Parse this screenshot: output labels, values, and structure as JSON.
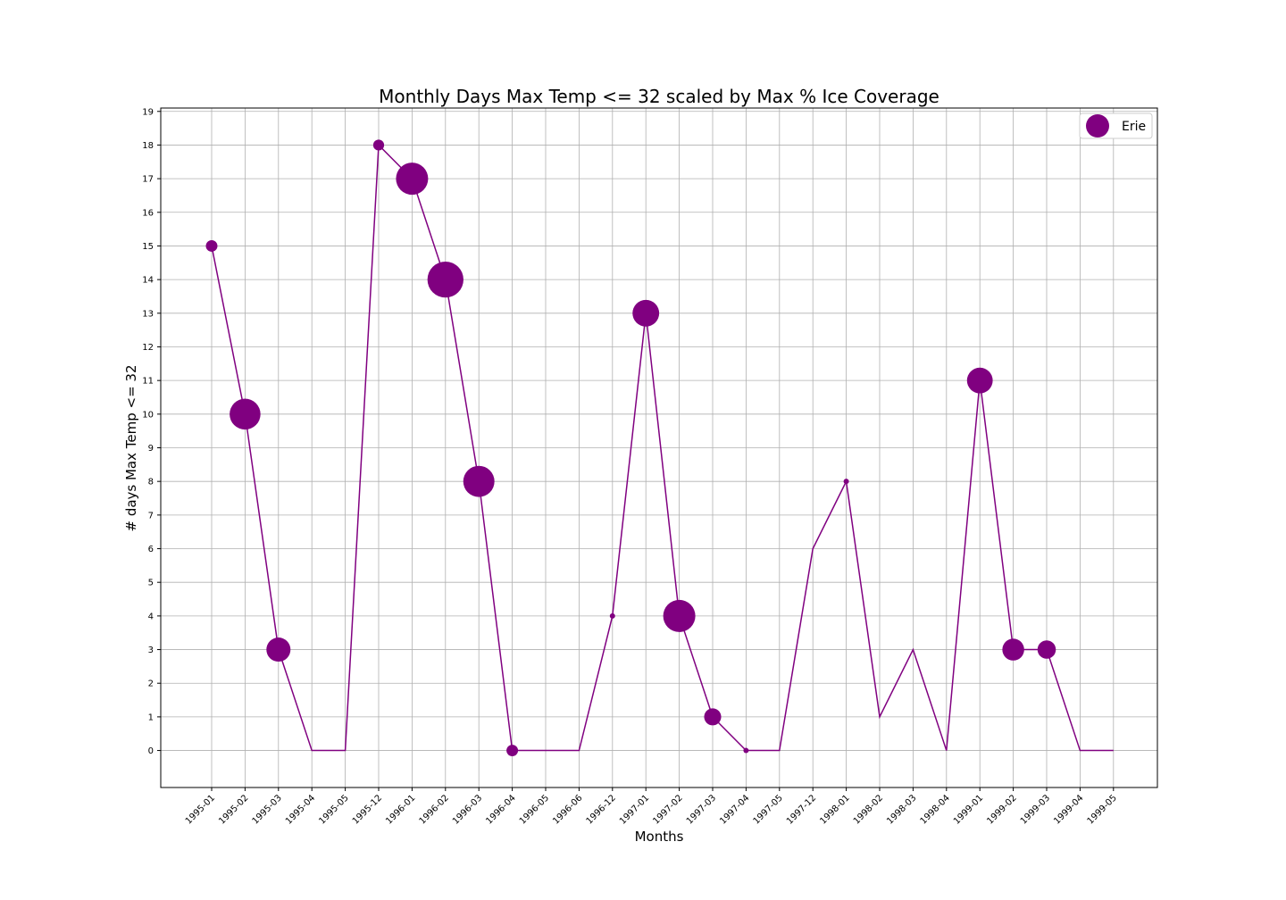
{
  "chart_data": {
    "type": "scatter",
    "title": "Monthly Days Max Temp <= 32 scaled by Max % Ice Coverage",
    "xlabel": "Months",
    "ylabel": "# days Max Temp <= 32",
    "categories": [
      "1995-01",
      "1995-02",
      "1995-03",
      "1995-04",
      "1995-05",
      "1995-12",
      "1996-01",
      "1996-02",
      "1996-03",
      "1996-04",
      "1996-05",
      "1996-06",
      "1996-12",
      "1997-01",
      "1997-02",
      "1997-03",
      "1997-04",
      "1997-05",
      "1997-12",
      "1998-01",
      "1998-02",
      "1998-03",
      "1998-04",
      "1999-01",
      "1999-02",
      "1999-03",
      "1999-04",
      "1999-05"
    ],
    "ylim": [
      -1.1,
      19.1
    ],
    "yticks": [
      0,
      1,
      2,
      3,
      4,
      5,
      6,
      7,
      8,
      9,
      10,
      11,
      12,
      13,
      14,
      15,
      16,
      17,
      18,
      19
    ],
    "grid": true,
    "legend_position": "top-right",
    "series": [
      {
        "name": "Erie",
        "color": "#800080",
        "values": [
          15,
          10,
          3,
          0,
          0,
          18,
          17,
          14,
          8,
          0,
          0,
          0,
          4,
          13,
          4,
          1,
          0,
          0,
          6,
          8,
          1,
          3,
          0,
          11,
          3,
          3,
          0,
          0
        ],
        "marker_scale": [
          0.36,
          0.96,
          0.75,
          0,
          0,
          0.34,
          1.0,
          1.12,
          0.97,
          0.36,
          0,
          0,
          0.15,
          0.83,
          1.0,
          0.53,
          0.16,
          0,
          0,
          0.16,
          0,
          0,
          0,
          0.8,
          0.68,
          0.57,
          0,
          0
        ]
      }
    ]
  }
}
